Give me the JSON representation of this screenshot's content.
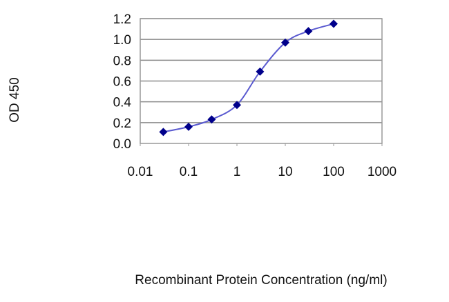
{
  "chart_data": {
    "type": "line",
    "title": "",
    "xlabel": "Recombinant Protein Concentration (ng/ml)",
    "ylabel": "OD 450",
    "x_scale": "log",
    "xlim": [
      0.01,
      1000
    ],
    "ylim": [
      0,
      1.2
    ],
    "x_ticks": [
      "0.01",
      "0.1",
      "1",
      "10",
      "100",
      "1000"
    ],
    "y_ticks": [
      "0.0",
      "0.2",
      "0.4",
      "0.6",
      "0.8",
      "1.0",
      "1.2"
    ],
    "grid": "horizontal",
    "legend": "none",
    "series": [
      {
        "color": "#00008b",
        "line_color": "#5a5ad0",
        "marker": "diamond",
        "x": [
          0.03,
          0.1,
          0.3,
          1,
          3,
          10,
          30,
          100
        ],
        "y": [
          0.11,
          0.16,
          0.23,
          0.37,
          0.69,
          0.97,
          1.08,
          1.15
        ]
      }
    ]
  }
}
